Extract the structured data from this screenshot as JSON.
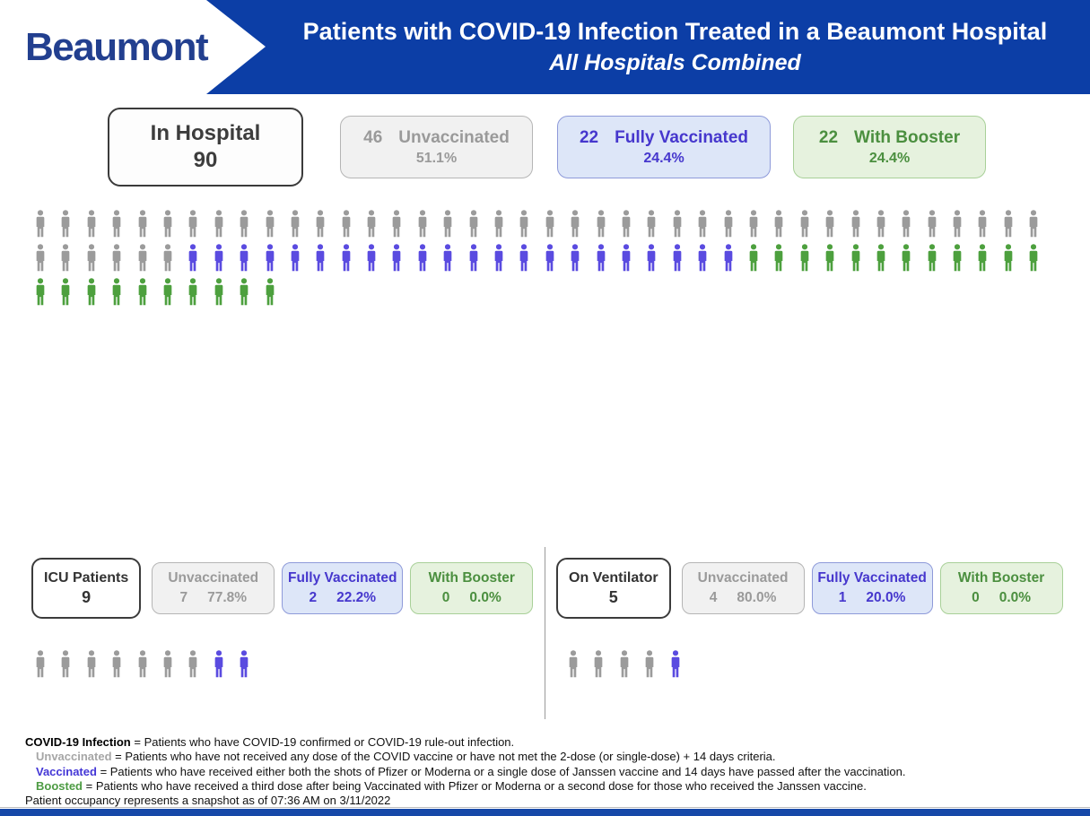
{
  "header": {
    "logo": "Beaumont",
    "title_line1": "Patients with COVID-19 Infection Treated in a Beaumont Hospital",
    "title_line2": "All Hospitals Combined"
  },
  "colors": {
    "banner_blue": "#0c3ea6",
    "logo_navy": "#223f8f",
    "unvaccinated": "#9b9b9b",
    "vaccinated": "#5a4be0",
    "boosted": "#4da03e"
  },
  "summary": {
    "in_hospital": {
      "label": "In Hospital",
      "value": "90"
    },
    "unvaccinated": {
      "count": "46",
      "label": "Unvaccinated",
      "pct": "51.1%"
    },
    "vaccinated": {
      "count": "22",
      "label": "Fully Vaccinated",
      "pct": "24.4%"
    },
    "boosted": {
      "count": "22",
      "label": "With Booster",
      "pct": "24.4%"
    }
  },
  "icu": {
    "title": {
      "label": "ICU Patients",
      "value": "9"
    },
    "unvaccinated": {
      "label": "Unvaccinated",
      "count": "7",
      "pct": "77.8%"
    },
    "vaccinated": {
      "label": "Fully Vaccinated",
      "count": "2",
      "pct": "22.2%"
    },
    "boosted": {
      "label": "With Booster",
      "count": "0",
      "pct": "0.0%"
    }
  },
  "ventilator": {
    "title": {
      "label": "On Ventilator",
      "value": "5"
    },
    "unvaccinated": {
      "label": "Unvaccinated",
      "count": "4",
      "pct": "80.0%"
    },
    "vaccinated": {
      "label": "Fully Vaccinated",
      "count": "1",
      "pct": "20.0%"
    },
    "boosted": {
      "label": "With Booster",
      "count": "0",
      "pct": "0.0%"
    }
  },
  "pictograms": {
    "hospital": [
      [
        {
          "status": "unvaccinated",
          "count": 40
        }
      ],
      [
        {
          "status": "unvaccinated",
          "count": 6
        },
        {
          "status": "vaccinated",
          "count": 22
        },
        {
          "status": "boosted",
          "count": 12
        }
      ],
      [
        {
          "status": "boosted",
          "count": 10
        }
      ]
    ],
    "icu": [
      [
        {
          "status": "unvaccinated",
          "count": 7
        },
        {
          "status": "vaccinated",
          "count": 2
        }
      ]
    ],
    "ventilator": [
      [
        {
          "status": "unvaccinated",
          "count": 4
        },
        {
          "status": "vaccinated",
          "count": 1
        }
      ]
    ]
  },
  "footnotes": [
    {
      "term": "COVID-19 Infection",
      "text": "= Patients who have COVID-19 confirmed or COVID-19 rule-out infection."
    },
    {
      "term": "Unvaccinated",
      "text": "= Patients who have not received any dose of the COVID vaccine or have not met the 2-dose (or single-dose) + 14 days criteria."
    },
    {
      "term": "Vaccinated",
      "text": "= Patients who have received either both the shots of Pfizer or Moderna or a single dose of Janssen vaccine and 14 days have passed after the vaccination."
    },
    {
      "term": "Boosted",
      "text": "= Patients who have received a third dose after being Vaccinated with Pfizer or Moderna or a second dose for those who received the Janssen vaccine."
    }
  ],
  "snapshot_note": "Patient occupancy represents a snapshot as of 07:36 AM on 3/11/2022",
  "chart_data": [
    {
      "type": "bar",
      "title": "In Hospital (unit pictogram, 1 icon = 1 patient)",
      "categories": [
        "Unvaccinated",
        "Fully Vaccinated",
        "With Booster"
      ],
      "values": [
        46,
        22,
        22
      ],
      "percentages": [
        51.1,
        24.4,
        24.4
      ],
      "total": 90,
      "legend_position": "top",
      "icons_per_row": 40
    },
    {
      "type": "bar",
      "title": "ICU Patients (unit pictogram)",
      "categories": [
        "Unvaccinated",
        "Fully Vaccinated",
        "With Booster"
      ],
      "values": [
        7,
        2,
        0
      ],
      "percentages": [
        77.8,
        22.2,
        0.0
      ],
      "total": 9
    },
    {
      "type": "bar",
      "title": "On Ventilator (unit pictogram)",
      "categories": [
        "Unvaccinated",
        "Fully Vaccinated",
        "With Booster"
      ],
      "values": [
        4,
        1,
        0
      ],
      "percentages": [
        80.0,
        20.0,
        0.0
      ],
      "total": 5
    }
  ]
}
